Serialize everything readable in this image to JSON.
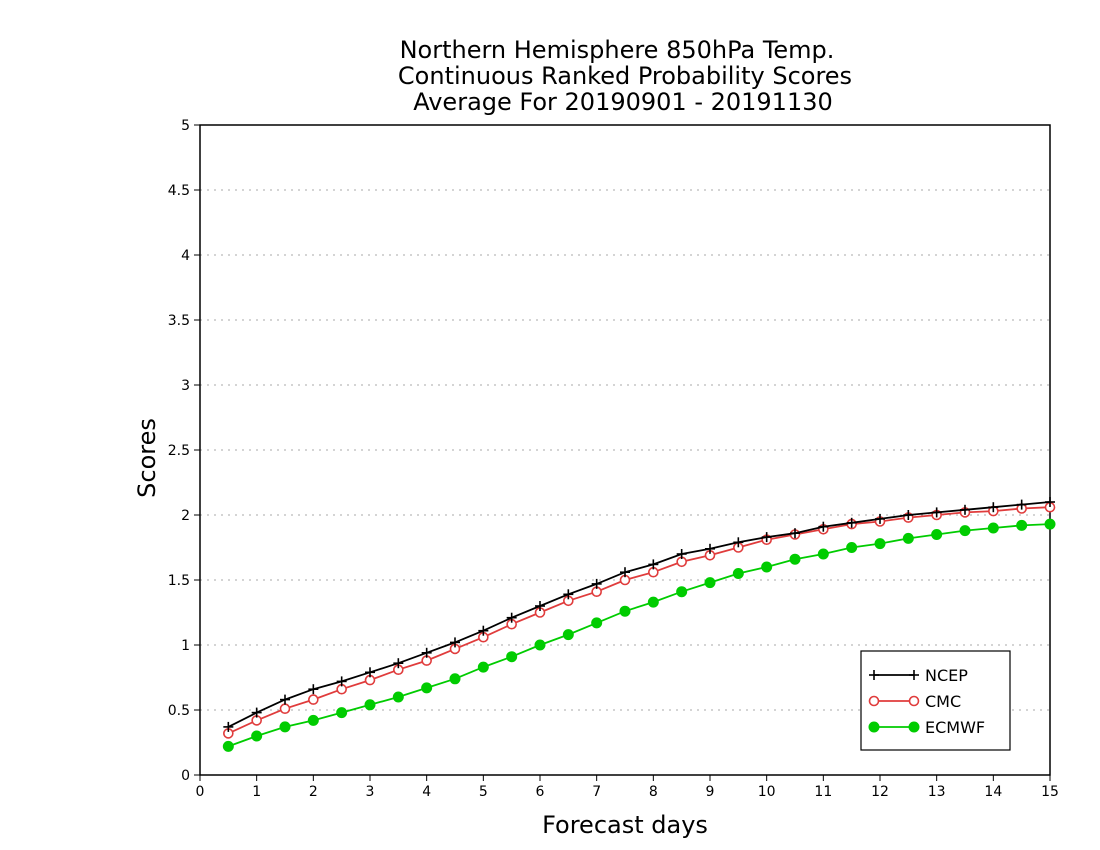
{
  "chart_data": {
    "type": "line",
    "title_lines": [
      "Northern Hemisphere 850hPa Temp.",
      "Continuous Ranked Probability Scores",
      "Average For 20190901 - 20191130"
    ],
    "xlabel": "Forecast days",
    "ylabel": "Scores",
    "xlim": [
      0,
      15
    ],
    "ylim": [
      0,
      5
    ],
    "x_ticks": [
      "0",
      "1",
      "2",
      "3",
      "4",
      "5",
      "6",
      "7",
      "8",
      "9",
      "10",
      "11",
      "12",
      "13",
      "14",
      "15"
    ],
    "y_ticks": [
      "0",
      "0.5",
      "1",
      "1.5",
      "2",
      "2.5",
      "3",
      "3.5",
      "4",
      "4.5",
      "5"
    ],
    "grid": true,
    "legend_position": "bottom-right",
    "x": [
      0.5,
      1,
      1.5,
      2,
      2.5,
      3,
      3.5,
      4,
      4.5,
      5,
      5.5,
      6,
      6.5,
      7,
      7.5,
      8,
      8.5,
      9,
      9.5,
      10,
      10.5,
      11,
      11.5,
      12,
      12.5,
      13,
      13.5,
      14,
      14.5,
      15
    ],
    "series": [
      {
        "name": "NCEP",
        "color": "#000000",
        "marker": "plus",
        "values": [
          0.37,
          0.48,
          0.58,
          0.66,
          0.72,
          0.79,
          0.86,
          0.94,
          1.02,
          1.11,
          1.21,
          1.3,
          1.39,
          1.47,
          1.56,
          1.62,
          1.7,
          1.74,
          1.79,
          1.83,
          1.86,
          1.91,
          1.94,
          1.97,
          2.0,
          2.02,
          2.04,
          2.06,
          2.08,
          2.1
        ]
      },
      {
        "name": "CMC",
        "color": "#e03c3c",
        "marker": "open-circle",
        "values": [
          0.32,
          0.42,
          0.51,
          0.58,
          0.66,
          0.73,
          0.81,
          0.88,
          0.97,
          1.06,
          1.16,
          1.25,
          1.34,
          1.41,
          1.5,
          1.56,
          1.64,
          1.69,
          1.75,
          1.81,
          1.85,
          1.89,
          1.93,
          1.95,
          1.98,
          2.0,
          2.02,
          2.03,
          2.05,
          2.06
        ]
      },
      {
        "name": "ECMWF",
        "color": "#00cc00",
        "marker": "filled-circle",
        "values": [
          0.22,
          0.3,
          0.37,
          0.42,
          0.48,
          0.54,
          0.6,
          0.67,
          0.74,
          0.83,
          0.91,
          1.0,
          1.08,
          1.17,
          1.26,
          1.33,
          1.41,
          1.48,
          1.55,
          1.6,
          1.66,
          1.7,
          1.75,
          1.78,
          1.82,
          1.85,
          1.88,
          1.9,
          1.92,
          1.93
        ]
      }
    ]
  }
}
